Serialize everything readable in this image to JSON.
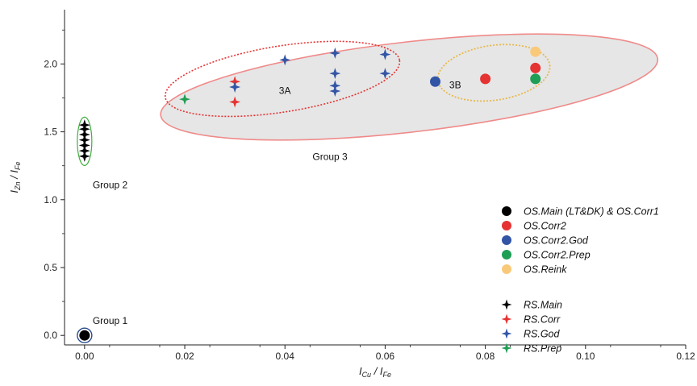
{
  "chart_data": {
    "type": "scatter",
    "xlabel": {
      "main": "I",
      "sub": "Cu",
      "sep": " / ",
      "main2": "I",
      "sub2": "Fe"
    },
    "ylabel": {
      "main": "I",
      "sub": "Zn",
      "sep": " / ",
      "main2": "I",
      "sub2": "Fe"
    },
    "xlim": [
      -0.004,
      0.12
    ],
    "ylim": [
      -0.07,
      2.4
    ],
    "xticks": [
      0.0,
      0.02,
      0.04,
      0.06,
      0.08,
      0.1,
      0.12
    ],
    "xtick_labels": [
      "0.00",
      "0.02",
      "0.04",
      "0.06",
      "0.08",
      "0.10",
      "0.12"
    ],
    "yticks": [
      0.0,
      0.5,
      1.0,
      1.5,
      2.0
    ],
    "ytick_labels": [
      "0.0",
      "0.5",
      "1.0",
      "1.5",
      "2.0"
    ],
    "grid": false,
    "legend_position": "right",
    "series": [
      {
        "name": "OS.Main (LT&DK) & OS.Corr1",
        "marker": "circle",
        "color": "#000000",
        "points": [
          {
            "x": 0.0,
            "y": 0.0
          }
        ]
      },
      {
        "name": "OS.Corr2",
        "marker": "circle",
        "color": "#e53232",
        "points": [
          {
            "x": 0.08,
            "y": 1.89
          },
          {
            "x": 0.09,
            "y": 1.97
          }
        ]
      },
      {
        "name": "OS.Corr2.God",
        "marker": "circle",
        "color": "#3355a5",
        "points": [
          {
            "x": 0.07,
            "y": 1.87
          }
        ]
      },
      {
        "name": "OS.Corr2.Prep",
        "marker": "circle",
        "color": "#1f9e55",
        "points": [
          {
            "x": 0.09,
            "y": 1.89
          }
        ]
      },
      {
        "name": "OS.Reink",
        "marker": "circle",
        "color": "#f9c97a",
        "points": [
          {
            "x": 0.09,
            "y": 2.09
          }
        ]
      },
      {
        "name": "RS.Main",
        "marker": "star",
        "color": "#000000",
        "points": [
          {
            "x": 0.0,
            "y": 1.32
          },
          {
            "x": 0.0,
            "y": 1.36
          },
          {
            "x": 0.0,
            "y": 1.4
          },
          {
            "x": 0.0,
            "y": 1.44
          },
          {
            "x": 0.0,
            "y": 1.48
          },
          {
            "x": 0.0,
            "y": 1.52
          },
          {
            "x": 0.0,
            "y": 1.55
          }
        ]
      },
      {
        "name": "RS.Corr",
        "marker": "star",
        "color": "#e53232",
        "points": [
          {
            "x": 0.03,
            "y": 1.87
          },
          {
            "x": 0.03,
            "y": 1.72
          }
        ]
      },
      {
        "name": "RS.God",
        "marker": "star",
        "color": "#3355a5",
        "points": [
          {
            "x": 0.03,
            "y": 1.83
          },
          {
            "x": 0.04,
            "y": 2.03
          },
          {
            "x": 0.05,
            "y": 2.08
          },
          {
            "x": 0.05,
            "y": 1.93
          },
          {
            "x": 0.05,
            "y": 1.84
          },
          {
            "x": 0.05,
            "y": 1.8
          },
          {
            "x": 0.06,
            "y": 2.07
          },
          {
            "x": 0.06,
            "y": 1.93
          }
        ]
      },
      {
        "name": "RS.Prep",
        "marker": "star",
        "color": "#1f9e55",
        "points": [
          {
            "x": 0.02,
            "y": 1.74
          }
        ]
      }
    ],
    "annotations": [
      "Group 1",
      "Group 2",
      "Group 3",
      "3A",
      "3B"
    ],
    "colors": {
      "group_outline": "#f08a8a",
      "group_fill": "#e6e6e6",
      "group2_outline": "#3fae3f",
      "group1_ring": "#2a4c8c",
      "subgroup3a_outline": "#e53232",
      "subgroup3b_outline": "#e8b84a"
    }
  }
}
